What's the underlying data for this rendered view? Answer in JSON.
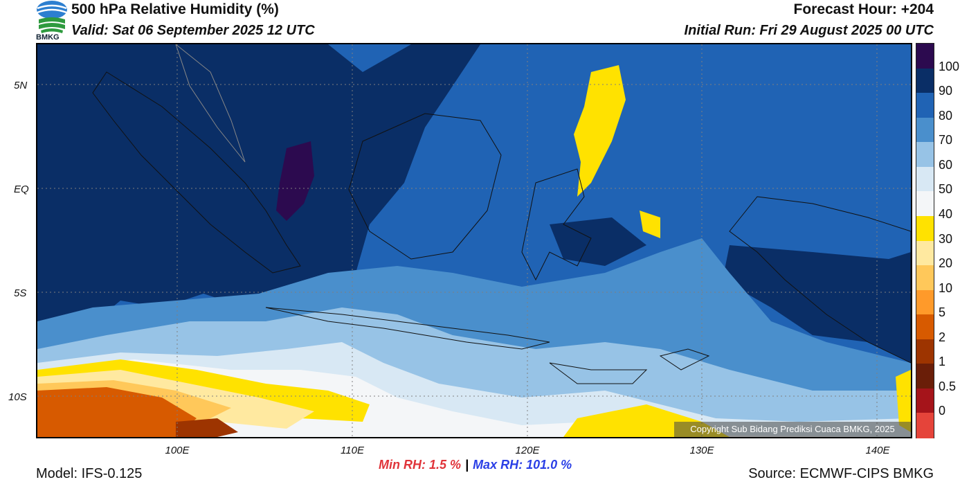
{
  "header": {
    "title": "500 hPa Relative Humidity (%)",
    "valid": "Valid: Sat 06 September 2025 12 UTC",
    "forecast_hour": "Forecast Hour: +204",
    "initial_run": "Initial Run: Fri 29 August 2025 00 UTC",
    "logo_text": "BMKG"
  },
  "axes": {
    "y_labels": [
      "5N",
      "EQ",
      "5S",
      "10S"
    ],
    "x_labels": [
      "100E",
      "110E",
      "120E",
      "130E",
      "140E"
    ]
  },
  "colorbar": {
    "labels": [
      "100",
      "90",
      "80",
      "70",
      "60",
      "50",
      "40",
      "30",
      "20",
      "10",
      "5",
      "2",
      "1",
      "0.5",
      "0"
    ],
    "colors": [
      "#2c0a4f",
      "#0a2e66",
      "#2063b4",
      "#4a8fcc",
      "#97c3e6",
      "#d8e8f4",
      "#f4f6f8",
      "#ffe200",
      "#ffe9a0",
      "#ffc85a",
      "#ff9a2a",
      "#d75a00",
      "#9d3400",
      "#6a1e08",
      "#a5141a",
      "#e5443a"
    ]
  },
  "stats": {
    "min": "Min RH:   1.5 %",
    "separator": "|",
    "max": "Max RH: 101.0 %"
  },
  "footer": {
    "model": "Model: IFS-0.125",
    "source": "Source: ECMWF-CIPS BMKG",
    "copyright": "Copyright Sub Bidang Prediksi Cuaca BMKG, 2025"
  }
}
